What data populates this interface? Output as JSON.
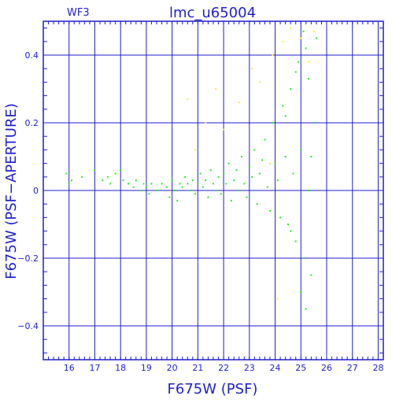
{
  "chart_data": {
    "type": "scatter",
    "title": "lmc_u65004",
    "subtitle": "WF3",
    "xlabel": "F675W (PSF)",
    "ylabel": "F675W (PSF−APERTURE)",
    "xlim": [
      15,
      28.2
    ],
    "ylim": [
      -0.5,
      0.5
    ],
    "x_ticks": [
      16,
      17,
      18,
      19,
      20,
      21,
      22,
      23,
      24,
      25,
      26,
      27,
      28
    ],
    "y_ticks": [
      -0.4,
      -0.2,
      0,
      0.2,
      0.4
    ],
    "y_tick_labels": [
      "−0.4",
      "−0.2",
      "0",
      "0.2",
      "0.4"
    ],
    "grid": true,
    "colors": {
      "axis": "#1f1fcc",
      "green": "#22ee22",
      "yellow": "#ffee33"
    },
    "series": [
      {
        "color": "green",
        "points": [
          [
            15.9,
            0.05
          ],
          [
            16.0,
            0.02
          ],
          [
            16.1,
            0.03
          ],
          [
            16.5,
            0.04
          ],
          [
            17.0,
            0.06
          ],
          [
            17.3,
            0.03
          ],
          [
            17.5,
            0.04
          ],
          [
            17.6,
            0.02
          ],
          [
            17.8,
            0.05
          ],
          [
            18.0,
            0.06
          ],
          [
            18.1,
            0.03
          ],
          [
            18.3,
            0.02
          ],
          [
            18.5,
            0.01
          ],
          [
            18.6,
            0.03
          ],
          [
            18.8,
            0.0
          ],
          [
            18.9,
            0.02
          ],
          [
            19.0,
            0.01
          ],
          [
            19.1,
            -0.01
          ],
          [
            19.2,
            0.02
          ],
          [
            19.4,
            0.0
          ],
          [
            19.6,
            0.02
          ],
          [
            19.8,
            0.01
          ],
          [
            19.9,
            -0.02
          ],
          [
            20.0,
            0.03
          ],
          [
            20.1,
            0.0
          ],
          [
            20.2,
            -0.03
          ],
          [
            20.3,
            0.02
          ],
          [
            20.4,
            0.01
          ],
          [
            20.5,
            0.04
          ],
          [
            20.6,
            0.02
          ],
          [
            20.7,
            0.0
          ],
          [
            20.8,
            0.03
          ],
          [
            20.9,
            -0.01
          ],
          [
            21.0,
            0.02
          ],
          [
            21.1,
            0.05
          ],
          [
            21.2,
            0.01
          ],
          [
            21.3,
            0.03
          ],
          [
            21.4,
            -0.02
          ],
          [
            21.5,
            0.06
          ],
          [
            21.6,
            0.02
          ],
          [
            21.7,
            0.0
          ],
          [
            21.8,
            0.04
          ],
          [
            21.9,
            -0.01
          ],
          [
            22.0,
            0.05
          ],
          [
            22.1,
            0.02
          ],
          [
            22.2,
            0.08
          ],
          [
            22.3,
            -0.03
          ],
          [
            22.4,
            0.03
          ],
          [
            22.5,
            0.06
          ],
          [
            22.6,
            0.0
          ],
          [
            22.7,
            0.1
          ],
          [
            22.8,
            0.02
          ],
          [
            22.9,
            -0.02
          ],
          [
            23.0,
            0.07
          ],
          [
            23.1,
            0.04
          ],
          [
            23.2,
            0.12
          ],
          [
            23.3,
            -0.04
          ],
          [
            23.4,
            0.05
          ],
          [
            23.5,
            0.09
          ],
          [
            23.6,
            0.15
          ],
          [
            23.7,
            0.01
          ],
          [
            23.8,
            -0.06
          ],
          [
            23.9,
            0.2
          ],
          [
            24.0,
            0.08
          ],
          [
            24.1,
            0.03
          ],
          [
            24.2,
            -0.08
          ],
          [
            24.3,
            0.25
          ],
          [
            24.4,
            0.1
          ],
          [
            24.5,
            -0.1
          ],
          [
            24.6,
            0.3
          ],
          [
            24.7,
            0.05
          ],
          [
            24.8,
            -0.15
          ],
          [
            24.9,
            0.38
          ],
          [
            25.0,
            0.12
          ],
          [
            25.1,
            -0.2
          ],
          [
            25.2,
            0.42
          ],
          [
            25.3,
            0.0
          ],
          [
            25.4,
            -0.25
          ],
          [
            25.5,
            0.2
          ],
          [
            25.6,
            0.45
          ],
          [
            25.0,
            -0.3
          ],
          [
            24.8,
            0.35
          ],
          [
            25.1,
            0.47
          ],
          [
            25.3,
            0.33
          ],
          [
            24.6,
            -0.12
          ],
          [
            24.4,
            0.22
          ],
          [
            25.2,
            -0.35
          ],
          [
            25.4,
            0.1
          ]
        ]
      },
      {
        "color": "yellow",
        "points": [
          [
            20.6,
            0.27
          ],
          [
            21.7,
            0.3
          ],
          [
            22.0,
            0.18
          ],
          [
            22.6,
            0.26
          ],
          [
            23.1,
            0.36
          ],
          [
            23.4,
            0.32
          ],
          [
            23.9,
            0.4
          ],
          [
            24.3,
            0.44
          ],
          [
            24.6,
            0.48
          ],
          [
            25.0,
            0.45
          ],
          [
            25.3,
            0.38
          ],
          [
            20.9,
            0.12
          ],
          [
            21.3,
            0.2
          ],
          [
            24.1,
            -0.32
          ],
          [
            25.5,
            0.47
          ],
          [
            23.8,
            0.08
          ]
        ]
      }
    ]
  }
}
